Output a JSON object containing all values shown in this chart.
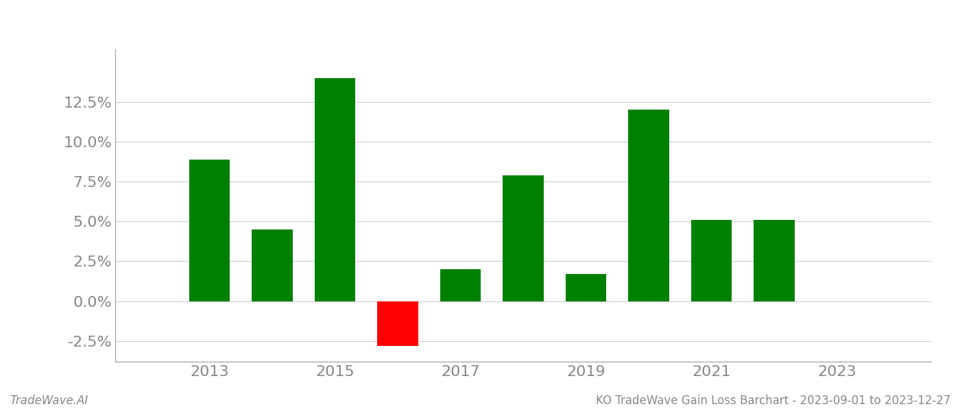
{
  "years": [
    2013,
    2014,
    2015,
    2016,
    2017,
    2018,
    2019,
    2020,
    2021,
    2022
  ],
  "values": [
    0.089,
    0.045,
    0.14,
    -0.028,
    0.02,
    0.079,
    0.017,
    0.12,
    0.051,
    0.051
  ],
  "colors": [
    "#008000",
    "#008000",
    "#008000",
    "#ff0000",
    "#008000",
    "#008000",
    "#008000",
    "#008000",
    "#008000",
    "#008000"
  ],
  "bar_width": 0.65,
  "ylim": [
    -0.038,
    0.158
  ],
  "yticks": [
    -0.025,
    0.0,
    0.025,
    0.05,
    0.075,
    0.1,
    0.125
  ],
  "xticks": [
    2013,
    2015,
    2017,
    2019,
    2021,
    2023
  ],
  "xlim": [
    2011.5,
    2024.5
  ],
  "grid_color": "#cccccc",
  "background_color": "#ffffff",
  "text_color": "#888888",
  "spine_color": "#aaaaaa",
  "footer_left": "TradeWave.AI",
  "footer_right": "KO TradeWave Gain Loss Barchart - 2023-09-01 to 2023-12-27",
  "footer_fontsize": 12,
  "tick_fontsize": 16,
  "footer_text_color": "#888888"
}
